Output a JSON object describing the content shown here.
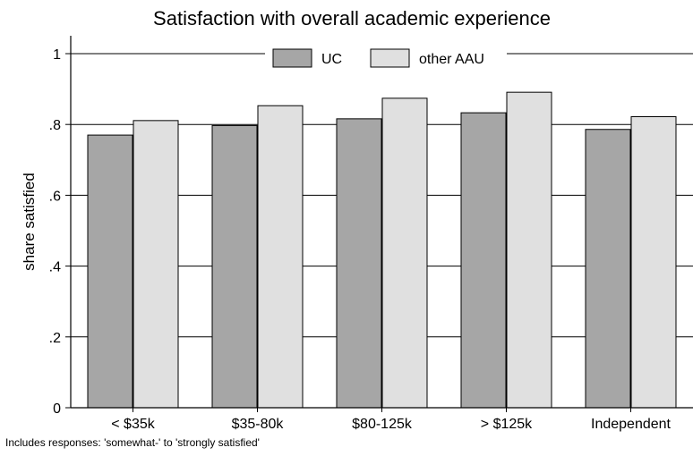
{
  "chart_data": {
    "type": "bar",
    "title": "Satisfaction with overall academic experience",
    "ylabel": "share satisfied",
    "xlabel": "",
    "note": "Includes responses: 'somewhat-' to 'strongly satisfied'",
    "categories": [
      "< $35k",
      "$35-80k",
      "$80-125k",
      "> $125k",
      "Independent"
    ],
    "series": [
      {
        "name": "UC",
        "color": "#a6a6a6",
        "values": [
          0.77,
          0.797,
          0.816,
          0.833,
          0.786
        ]
      },
      {
        "name": "other AAU",
        "color": "#e0e0e0",
        "values": [
          0.811,
          0.853,
          0.874,
          0.891,
          0.822
        ]
      }
    ],
    "ylim": [
      0,
      1
    ],
    "yticks": [
      0,
      0.2,
      0.4,
      0.6,
      0.8,
      1
    ],
    "ytick_labels": [
      "0",
      ".2",
      ".4",
      ".6",
      ".8",
      "1"
    ],
    "grid": true,
    "legend_position": "top-center"
  }
}
